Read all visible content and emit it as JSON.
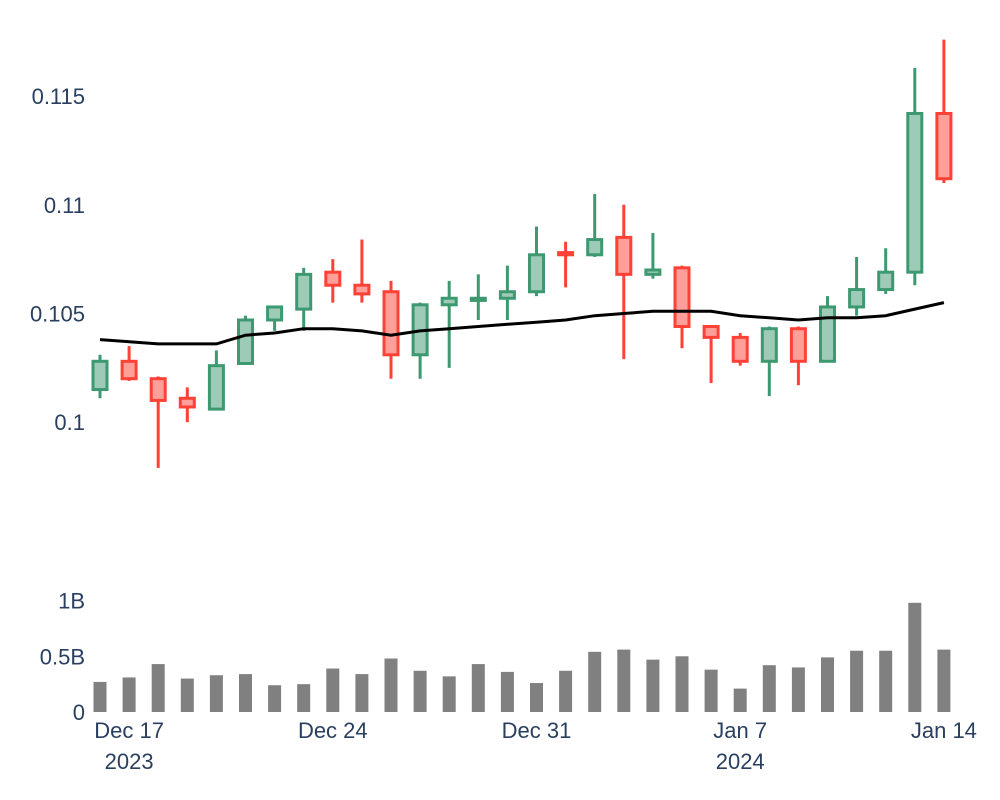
{
  "chart_data": [
    {
      "type": "candlestick",
      "x": [
        "2023-12-16",
        "2023-12-17",
        "2023-12-18",
        "2023-12-19",
        "2023-12-20",
        "2023-12-21",
        "2023-12-22",
        "2023-12-23",
        "2023-12-24",
        "2023-12-25",
        "2023-12-26",
        "2023-12-27",
        "2023-12-28",
        "2023-12-29",
        "2023-12-30",
        "2023-12-31",
        "2024-01-01",
        "2024-01-02",
        "2024-01-03",
        "2024-01-04",
        "2024-01-05",
        "2024-01-06",
        "2024-01-07",
        "2024-01-08",
        "2024-01-09",
        "2024-01-10",
        "2024-01-11",
        "2024-01-12",
        "2024-01-13",
        "2024-01-14"
      ],
      "open": [
        0.1015,
        0.1028,
        0.102,
        0.1011,
        0.1006,
        0.1027,
        0.1047,
        0.1052,
        0.1069,
        0.1063,
        0.106,
        0.1031,
        0.1054,
        0.1056,
        0.1057,
        0.106,
        0.1078,
        0.1077,
        0.1085,
        0.1068,
        0.1071,
        0.1044,
        0.1039,
        0.1028,
        0.1043,
        0.1028,
        0.1053,
        0.1061,
        0.1069,
        0.1142
      ],
      "high": [
        0.1031,
        0.1035,
        0.1021,
        0.1016,
        0.1033,
        0.1049,
        0.1053,
        0.1071,
        0.1075,
        0.1084,
        0.1065,
        0.1055,
        0.1065,
        0.1068,
        0.1072,
        0.109,
        0.1083,
        0.1105,
        0.11,
        0.1087,
        0.1072,
        0.1044,
        0.1041,
        0.1044,
        0.1044,
        0.1058,
        0.1076,
        0.108,
        0.1163,
        0.1176
      ],
      "low": [
        0.1011,
        0.1019,
        0.0979,
        0.1,
        0.1006,
        0.1027,
        0.1042,
        0.1042,
        0.1055,
        0.1055,
        0.102,
        0.102,
        0.1025,
        0.1047,
        0.1047,
        0.1058,
        0.1062,
        0.1076,
        0.1029,
        0.1066,
        0.1034,
        0.1018,
        0.1026,
        0.1012,
        0.1017,
        0.1028,
        0.1049,
        0.1059,
        0.1063,
        0.111
      ],
      "close": [
        0.1028,
        0.102,
        0.101,
        0.1007,
        0.1026,
        0.1047,
        0.1053,
        0.1068,
        0.1063,
        0.1059,
        0.1031,
        0.1054,
        0.1057,
        0.1057,
        0.106,
        0.1077,
        0.1077,
        0.1084,
        0.1068,
        0.107,
        0.1044,
        0.1039,
        0.1028,
        0.1043,
        0.1028,
        0.1053,
        0.1061,
        0.1069,
        0.1142,
        0.1112
      ],
      "ma": [
        0.1038,
        0.1037,
        0.1036,
        0.1036,
        0.1036,
        0.104,
        0.1041,
        0.1043,
        0.1043,
        0.1042,
        0.104,
        0.1042,
        0.1043,
        0.1044,
        0.1045,
        0.1046,
        0.1047,
        0.1049,
        0.105,
        0.1051,
        0.1051,
        0.1051,
        0.1049,
        0.1048,
        0.1047,
        0.1048,
        0.1048,
        0.1049,
        0.1052,
        0.1055
      ],
      "ylim": [
        0.0955,
        0.1185
      ],
      "yticks": [
        {
          "v": 0.1,
          "label": "0.1"
        },
        {
          "v": 0.105,
          "label": "0.105"
        },
        {
          "v": 0.11,
          "label": "0.11"
        },
        {
          "v": 0.115,
          "label": "0.115"
        }
      ],
      "colors": {
        "increasing": "#3d9970",
        "increasing_fill": "#9ecbb8",
        "decreasing": "#ff4136",
        "decreasing_fill": "#ff9f9a",
        "ma": "#000000"
      },
      "title": "",
      "xlabel": "",
      "ylabel": ""
    },
    {
      "type": "bar",
      "x": [
        "2023-12-16",
        "2023-12-17",
        "2023-12-18",
        "2023-12-19",
        "2023-12-20",
        "2023-12-21",
        "2023-12-22",
        "2023-12-23",
        "2023-12-24",
        "2023-12-25",
        "2023-12-26",
        "2023-12-27",
        "2023-12-28",
        "2023-12-29",
        "2023-12-30",
        "2023-12-31",
        "2024-01-01",
        "2024-01-02",
        "2024-01-03",
        "2024-01-04",
        "2024-01-05",
        "2024-01-06",
        "2024-01-07",
        "2024-01-08",
        "2024-01-09",
        "2024-01-10",
        "2024-01-11",
        "2024-01-12",
        "2024-01-13",
        "2024-01-14"
      ],
      "values": [
        0.27,
        0.31,
        0.43,
        0.3,
        0.33,
        0.34,
        0.24,
        0.25,
        0.39,
        0.34,
        0.48,
        0.37,
        0.32,
        0.43,
        0.36,
        0.26,
        0.37,
        0.54,
        0.56,
        0.47,
        0.5,
        0.38,
        0.21,
        0.42,
        0.4,
        0.49,
        0.55,
        0.55,
        0.98,
        0.56
      ],
      "unit": "B",
      "ylim": [
        0,
        1.05
      ],
      "yticks": [
        {
          "v": 0,
          "label": "0"
        },
        {
          "v": 0.5,
          "label": "0.5B"
        },
        {
          "v": 1,
          "label": "1B"
        }
      ],
      "color": "#808080"
    }
  ],
  "x_axis": {
    "ticks": [
      {
        "date": "2023-12-17",
        "label": "Dec 17",
        "sub": "2023"
      },
      {
        "date": "2023-12-24",
        "label": "Dec 24",
        "sub": ""
      },
      {
        "date": "2023-12-31",
        "label": "Dec 31",
        "sub": ""
      },
      {
        "date": "2024-01-07",
        "label": "Jan 7",
        "sub": "2024"
      },
      {
        "date": "2024-01-14",
        "label": "Jan 14",
        "sub": ""
      }
    ]
  }
}
